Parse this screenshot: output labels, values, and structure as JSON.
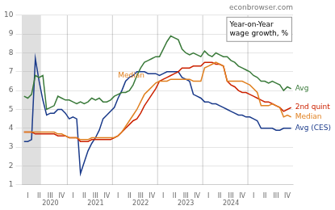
{
  "chart_data": {
    "type": "line",
    "title": "econbrowser.com",
    "subtitle": "Year-on-Year\nwage growth, %",
    "categories": [
      null,
      "I",
      null,
      null,
      "II",
      null,
      null,
      [
        "III",
        "2020"
      ],
      null,
      null,
      "IV",
      null,
      null,
      "I",
      null,
      null,
      "II",
      null,
      null,
      [
        "III",
        "2021"
      ],
      null,
      null,
      "IV",
      null,
      null,
      "I",
      null,
      null,
      "II",
      null,
      null,
      [
        "III",
        "2022"
      ],
      null,
      null,
      "IV",
      null,
      null,
      "I",
      null,
      null,
      "II",
      null,
      null,
      [
        "III",
        "2023"
      ],
      null,
      null,
      "IV",
      null,
      null,
      "I",
      null,
      null,
      "II",
      null,
      null,
      [
        "III",
        "2024"
      ],
      null,
      null,
      "IV",
      null,
      null,
      "I",
      null,
      null,
      "II",
      null,
      null,
      "III",
      null,
      null,
      "IV",
      null
    ],
    "series": [
      {
        "name": "Avg",
        "color": "#3a7a3a",
        "values": [
          5.7,
          5.6,
          5.8,
          6.8,
          6.7,
          6.8,
          5.0,
          5.1,
          5.2,
          5.7,
          5.6,
          5.5,
          5.5,
          5.4,
          5.3,
          5.4,
          5.3,
          5.4,
          5.6,
          5.5,
          5.6,
          5.4,
          5.4,
          5.5,
          5.7,
          5.8,
          5.9,
          5.9,
          6.0,
          6.3,
          6.8,
          7.2,
          7.5,
          7.6,
          7.7,
          7.8,
          7.8,
          8.2,
          8.6,
          8.9,
          8.8,
          8.7,
          8.2,
          8.0,
          7.9,
          8.0,
          7.9,
          7.8,
          8.1,
          7.9,
          7.8,
          8.0,
          7.9,
          7.8,
          7.8,
          7.6,
          7.5,
          7.3,
          7.2,
          7.1,
          7.0,
          6.8,
          6.7,
          6.5,
          6.5,
          6.4,
          6.5,
          6.4,
          6.3,
          6.0,
          6.2,
          6.1
        ]
      },
      {
        "name": "Median",
        "color": "#e08020",
        "values": [
          3.8,
          3.8,
          3.8,
          3.8,
          3.8,
          3.8,
          3.8,
          3.8,
          3.8,
          3.7,
          3.7,
          3.6,
          3.5,
          3.5,
          3.5,
          3.4,
          3.4,
          3.4,
          3.5,
          3.5,
          3.5,
          3.5,
          3.5,
          3.5,
          3.5,
          3.6,
          3.8,
          4.1,
          4.4,
          4.7,
          5.0,
          5.4,
          5.8,
          6.0,
          6.2,
          6.4,
          6.5,
          6.5,
          6.5,
          6.6,
          6.6,
          6.6,
          6.6,
          6.6,
          6.6,
          6.5,
          6.5,
          6.5,
          7.2,
          7.3,
          7.4,
          7.5,
          7.4,
          7.3,
          6.5,
          6.5,
          6.5,
          6.5,
          6.5,
          6.4,
          6.3,
          6.1,
          5.9,
          5.2,
          5.2,
          5.2,
          5.3,
          5.2,
          5.1,
          4.6,
          4.7,
          4.6
        ]
      },
      {
        "name": "2nd quint",
        "color": "#cc2200",
        "values": [
          3.8,
          3.8,
          3.8,
          3.7,
          3.7,
          3.7,
          3.7,
          3.7,
          3.7,
          3.6,
          3.6,
          3.6,
          3.5,
          3.5,
          3.5,
          3.3,
          3.3,
          3.3,
          3.4,
          3.4,
          3.4,
          3.4,
          3.4,
          3.4,
          3.5,
          3.6,
          3.8,
          4.0,
          4.2,
          4.4,
          4.5,
          4.8,
          5.2,
          5.5,
          5.8,
          6.1,
          6.5,
          6.6,
          6.7,
          6.8,
          6.9,
          7.0,
          7.2,
          7.2,
          7.2,
          7.3,
          7.3,
          7.3,
          7.5,
          7.5,
          7.5,
          7.4,
          7.4,
          7.3,
          6.5,
          6.3,
          6.2,
          6.0,
          5.9,
          5.9,
          5.8,
          5.7,
          5.6,
          5.5,
          5.4,
          5.4,
          5.3,
          5.2,
          5.1,
          4.9,
          5.0,
          5.1
        ]
      },
      {
        "name": "Avg (CES)",
        "color": "#1a3a8a",
        "values": [
          3.3,
          3.3,
          3.4,
          7.7,
          6.5,
          5.5,
          4.7,
          4.8,
          4.8,
          5.0,
          5.0,
          4.8,
          4.5,
          4.6,
          4.5,
          1.6,
          2.2,
          2.8,
          3.2,
          3.5,
          3.9,
          4.5,
          4.7,
          4.9,
          5.1,
          5.6,
          6.0,
          6.5,
          6.7,
          6.8,
          7.0,
          7.0,
          7.0,
          6.9,
          6.9,
          6.9,
          6.8,
          6.9,
          7.0,
          7.0,
          7.0,
          7.0,
          6.7,
          6.6,
          6.5,
          5.8,
          5.7,
          5.6,
          5.4,
          5.4,
          5.3,
          5.3,
          5.2,
          5.1,
          5.0,
          4.9,
          4.8,
          4.7,
          4.7,
          4.6,
          4.6,
          4.5,
          4.4,
          4.0,
          4.0,
          4.0,
          4.0,
          3.9,
          3.9,
          4.0,
          4.0,
          4.0
        ]
      }
    ],
    "annotations": [
      {
        "text": "Median",
        "x": 25,
        "y": 6.8,
        "color": "#e08020"
      }
    ],
    "shaded_x": [
      -0.5,
      4.5
    ],
    "ylim": [
      1,
      10
    ],
    "yticks": [
      1,
      2,
      3,
      4,
      5,
      6,
      7,
      8,
      9,
      10
    ],
    "grid": true
  }
}
